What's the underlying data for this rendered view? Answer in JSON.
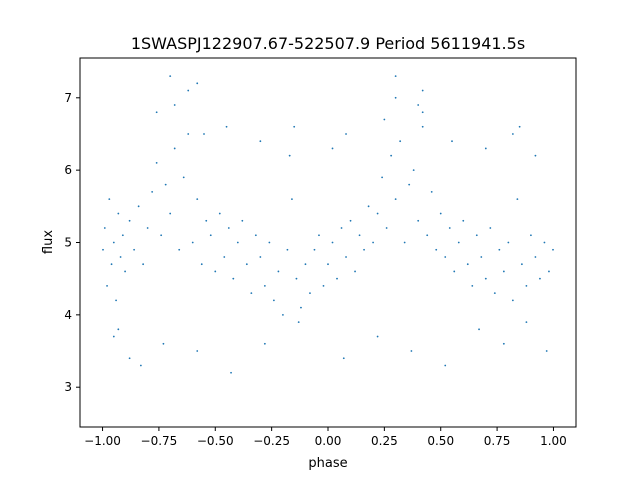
{
  "chart_data": {
    "type": "scatter",
    "title": "1SWASPJ122907.67-522507.9 Period 5611941.5s",
    "xlabel": "phase",
    "ylabel": "flux",
    "xlim": [
      -1.1,
      1.1
    ],
    "ylim": [
      2.45,
      7.55
    ],
    "xticks": [
      -1.0,
      -0.75,
      -0.5,
      -0.25,
      0.0,
      0.25,
      0.5,
      0.75,
      1.0
    ],
    "xtick_labels": [
      "−1.00",
      "−0.75",
      "−0.50",
      "−0.25",
      "0.00",
      "0.25",
      "0.50",
      "0.75",
      "1.00"
    ],
    "yticks": [
      3,
      4,
      5,
      6,
      7
    ],
    "ytick_labels": [
      "3",
      "4",
      "5",
      "6",
      "7"
    ],
    "grid": false,
    "legend": "none",
    "marker_color": "#1f77b4",
    "series": [
      {
        "x": [
          -0.998,
          -0.99,
          -0.98,
          -0.97,
          -0.96,
          -0.95,
          -0.94,
          -0.93,
          -0.92,
          -0.91,
          -0.9,
          -0.88,
          -0.86,
          -0.84,
          -0.82,
          -0.8,
          -0.78,
          -0.76,
          -0.74,
          -0.72,
          -0.7,
          -0.68,
          -0.66,
          -0.64,
          -0.62,
          -0.6,
          -0.58,
          -0.56,
          -0.54,
          -0.52,
          -0.5,
          -0.48,
          -0.46,
          -0.44,
          -0.42,
          -0.4,
          -0.38,
          -0.36,
          -0.34,
          -0.32,
          -0.3,
          -0.28,
          -0.26,
          -0.24,
          -0.22,
          -0.2,
          -0.18,
          -0.16,
          -0.14,
          -0.12,
          -0.1,
          -0.08,
          -0.06,
          -0.04,
          -0.02,
          0.0,
          0.02,
          0.04,
          0.06,
          0.08,
          0.1,
          0.12,
          0.14,
          0.16,
          0.18,
          0.2,
          0.22,
          0.24,
          0.26,
          0.28,
          0.3,
          0.32,
          0.34,
          0.36,
          0.38,
          0.4,
          0.42,
          0.44,
          0.46,
          0.48,
          0.5,
          0.52,
          0.54,
          0.56,
          0.58,
          0.6,
          0.62,
          0.64,
          0.66,
          0.68,
          0.7,
          0.72,
          0.74,
          0.76,
          0.78,
          0.8,
          0.82,
          0.84,
          0.86,
          0.88,
          0.9,
          0.92,
          0.94,
          0.96,
          0.98,
          0.998,
          -0.95,
          -0.88,
          -0.76,
          -0.68,
          -0.62,
          -0.55,
          -0.45,
          -0.3,
          -0.17,
          -0.15,
          0.02,
          0.08,
          0.25,
          0.3,
          0.4,
          0.42,
          0.55,
          0.7,
          0.82,
          0.85,
          0.92,
          -0.93,
          -0.83,
          -0.73,
          -0.58,
          -0.43,
          -0.28,
          -0.13,
          0.07,
          0.22,
          0.37,
          0.52,
          0.67,
          0.78,
          0.88,
          0.97,
          -0.7,
          0.3,
          -0.58,
          0.42
        ],
        "y": [
          4.9,
          5.2,
          4.4,
          5.6,
          4.7,
          5.0,
          4.2,
          5.4,
          4.8,
          5.1,
          4.6,
          5.3,
          4.9,
          5.5,
          4.7,
          5.2,
          5.7,
          6.1,
          5.1,
          5.8,
          5.4,
          6.3,
          4.9,
          5.9,
          6.5,
          5.0,
          5.6,
          4.7,
          5.3,
          5.1,
          4.6,
          5.4,
          4.8,
          5.2,
          4.5,
          5.0,
          5.3,
          4.7,
          4.3,
          5.1,
          4.8,
          4.4,
          5.0,
          4.2,
          4.6,
          4.0,
          4.9,
          5.6,
          4.5,
          4.1,
          4.7,
          4.3,
          4.9,
          5.1,
          4.4,
          4.7,
          5.0,
          4.5,
          5.2,
          4.8,
          5.3,
          4.6,
          5.1,
          4.9,
          5.5,
          5.0,
          5.4,
          5.9,
          5.2,
          6.2,
          5.6,
          6.4,
          5.0,
          5.8,
          6.0,
          5.3,
          6.6,
          5.1,
          5.7,
          4.9,
          5.4,
          4.8,
          5.2,
          4.6,
          5.0,
          5.3,
          4.7,
          4.4,
          5.1,
          4.8,
          4.5,
          5.2,
          4.3,
          4.9,
          4.6,
          5.0,
          4.2,
          5.6,
          4.7,
          4.4,
          5.1,
          4.8,
          4.5,
          5.0,
          4.6,
          4.9,
          3.7,
          3.4,
          6.8,
          6.9,
          7.1,
          6.5,
          6.6,
          6.4,
          6.2,
          6.6,
          6.3,
          6.5,
          6.7,
          7.0,
          6.9,
          6.8,
          6.4,
          6.3,
          6.5,
          6.6,
          6.2,
          3.8,
          3.3,
          3.6,
          3.5,
          3.2,
          3.6,
          3.9,
          3.4,
          3.7,
          3.5,
          3.3,
          3.8,
          3.6,
          3.9,
          3.5,
          7.3,
          7.3,
          7.2,
          7.1
        ]
      }
    ]
  }
}
